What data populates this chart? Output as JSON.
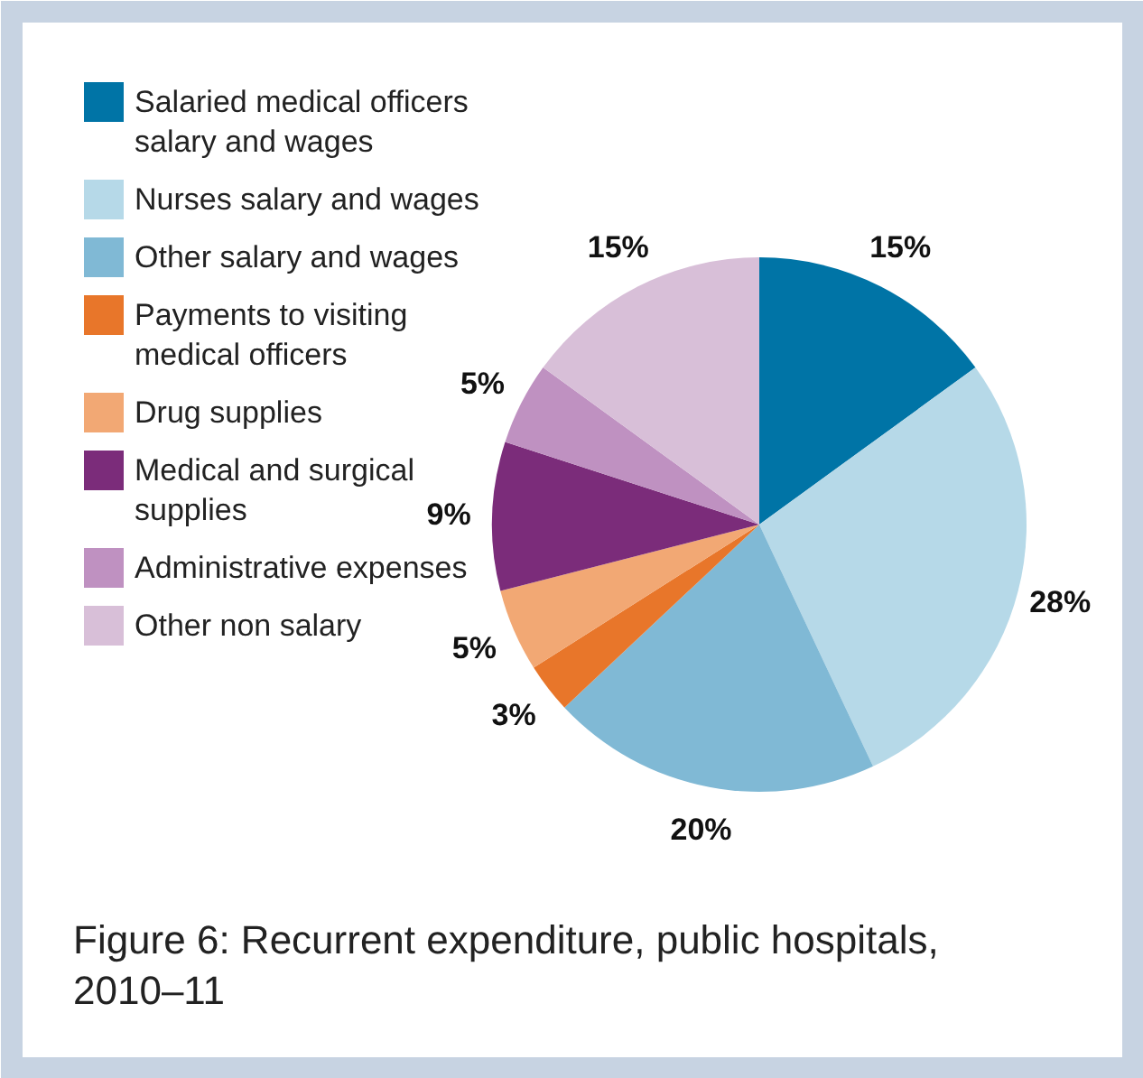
{
  "chart_data": {
    "type": "pie",
    "title": "Figure 6: Recurrent expenditure, public hospitals, 2010–11",
    "categories": [
      "Salaried medical officers salary and wages",
      "Nurses salary and wages",
      "Other salary and wages",
      "Payments to visiting medical officers",
      "Drug supplies",
      "Medical and surgical supplies",
      "Administrative expenses",
      "Other non salary"
    ],
    "values": [
      15,
      28,
      20,
      3,
      5,
      9,
      5,
      15
    ],
    "colors": [
      "#0074a6",
      "#b6d9e8",
      "#80b9d5",
      "#e8762a",
      "#f2a874",
      "#7b2c7a",
      "#bf91c1",
      "#d8bfd8"
    ],
    "value_labels": [
      "15%",
      "28%",
      "20%",
      "3%",
      "5%",
      "9%",
      "5%",
      "15%"
    ],
    "legend": "left"
  }
}
